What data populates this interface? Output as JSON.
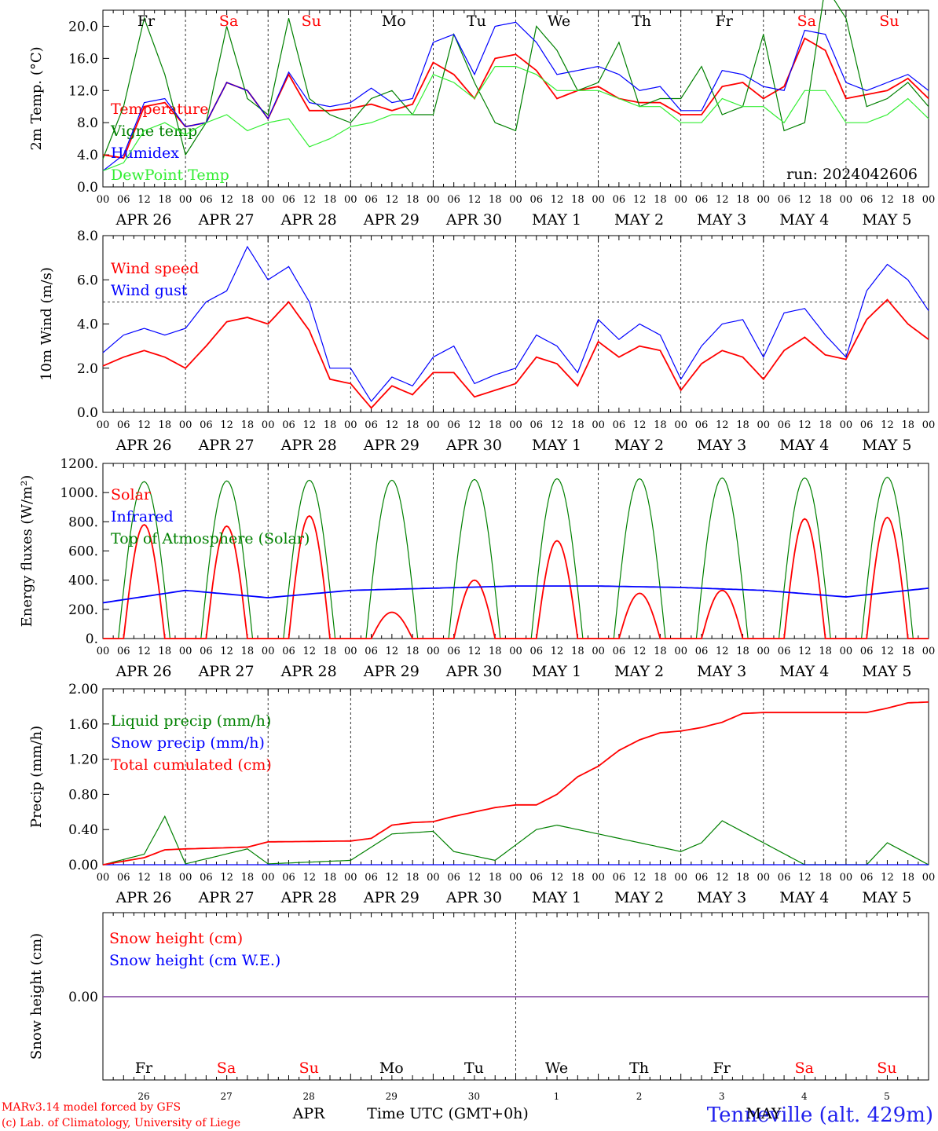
{
  "colors": {
    "red": "#ff0000",
    "green": "#008000",
    "blue": "#0000ff",
    "lightgreen": "#33ee33",
    "purple": "#7f3f9f",
    "black": "#000000"
  },
  "weekdays": [
    {
      "label": "Fr",
      "color": "#000000"
    },
    {
      "label": "Sa",
      "color": "#ff0000"
    },
    {
      "label": "Su",
      "color": "#ff0000"
    },
    {
      "label": "Mo",
      "color": "#000000"
    },
    {
      "label": "Tu",
      "color": "#000000"
    },
    {
      "label": "We",
      "color": "#000000"
    },
    {
      "label": "Th",
      "color": "#000000"
    },
    {
      "label": "Fr",
      "color": "#000000"
    },
    {
      "label": "Sa",
      "color": "#ff0000"
    },
    {
      "label": "Su",
      "color": "#ff0000"
    }
  ],
  "date_labels": [
    "APR 26",
    "APR 27",
    "APR 28",
    "APR 29",
    "APR 30",
    "MAY  1",
    "MAY  2",
    "MAY  3",
    "MAY  4",
    "MAY  5"
  ],
  "hour_labels": [
    "00",
    "06",
    "12",
    "18"
  ],
  "day_numbers": [
    "26",
    "27",
    "28",
    "29",
    "30",
    "1",
    "2",
    "3",
    "4",
    "5"
  ],
  "footer": {
    "month_apr": "APR",
    "month_may": "MAY",
    "time_axis": "Time UTC (GMT+0h)",
    "credit1": "MARv3.14 model forced by GFS",
    "credit2": "(c) Lab. of Climatology, University of Liege",
    "station": "Tenneville (alt. 429m)"
  },
  "chart_data": [
    {
      "type": "line",
      "ylabel": "2m Temp. (°C)",
      "ylim": [
        0,
        22
      ],
      "yticks": [
        "0.0",
        "4.0",
        "8.0",
        "12.0",
        "16.0",
        "20.0"
      ],
      "annotation": "run: 2024042606",
      "x_unit": "hours since APR 26 00 UTC",
      "series": [
        {
          "name": "Temperature",
          "color": "#ff0000",
          "x": [
            0,
            6,
            12,
            18,
            24,
            30,
            36,
            42,
            48,
            54,
            60,
            66,
            72,
            78,
            84,
            90,
            96,
            102,
            108,
            114,
            120,
            126,
            132,
            138,
            144,
            150,
            156,
            162,
            168,
            174,
            180,
            186,
            192,
            198,
            204,
            210,
            216,
            222,
            228,
            234,
            240
          ],
          "values": [
            4,
            3.6,
            10,
            10.5,
            7.5,
            8,
            13,
            12,
            8.5,
            14,
            9.5,
            9.5,
            9.8,
            10.3,
            9.5,
            10.3,
            15.5,
            14,
            11,
            16,
            16.5,
            14.5,
            11,
            12,
            12.5,
            11,
            10.5,
            10.5,
            9,
            9,
            12.5,
            13,
            11,
            12.5,
            18.5,
            17,
            11,
            11.5,
            12,
            13.5,
            11
          ]
        },
        {
          "name": "Vigne temp",
          "color": "#008000",
          "x": [
            0,
            6,
            12,
            18,
            24,
            30,
            36,
            42,
            48,
            54,
            60,
            66,
            72,
            78,
            84,
            90,
            96,
            102,
            108,
            114,
            120,
            126,
            132,
            138,
            144,
            150,
            156,
            162,
            168,
            174,
            180,
            186,
            192,
            198,
            204,
            210,
            216,
            222,
            228,
            234,
            240
          ],
          "values": [
            3.5,
            10,
            21,
            14,
            4,
            8,
            20,
            11,
            9,
            21,
            11,
            9,
            8,
            11,
            12,
            9,
            9,
            19,
            13,
            8,
            7,
            20,
            17,
            12,
            13,
            18,
            10,
            11,
            11,
            15,
            9,
            10,
            19,
            7,
            8,
            25,
            21,
            10,
            11,
            13,
            10
          ]
        },
        {
          "name": "Humidex",
          "color": "#0000ff",
          "x": [
            0,
            6,
            12,
            18,
            24,
            30,
            36,
            42,
            48,
            54,
            60,
            66,
            72,
            78,
            84,
            90,
            96,
            102,
            108,
            114,
            120,
            126,
            132,
            138,
            144,
            150,
            156,
            162,
            168,
            174,
            180,
            186,
            192,
            198,
            204,
            210,
            216,
            222,
            228,
            234,
            240
          ],
          "values": [
            2,
            4,
            10.5,
            11,
            7.5,
            8,
            13,
            12,
            8.5,
            14.3,
            10.5,
            10,
            10.5,
            12.3,
            10.5,
            11,
            18,
            19,
            14,
            20,
            20.5,
            18,
            14,
            14.5,
            15,
            14,
            12,
            12.5,
            9.5,
            9.5,
            14.5,
            14,
            12.5,
            12,
            19.5,
            19,
            13,
            12,
            13,
            14,
            12
          ]
        },
        {
          "name": "DewPoint Temp",
          "color": "#33ee33",
          "x": [
            0,
            6,
            12,
            18,
            24,
            30,
            36,
            42,
            48,
            54,
            60,
            66,
            72,
            78,
            84,
            90,
            96,
            102,
            108,
            114,
            120,
            126,
            132,
            138,
            144,
            150,
            156,
            162,
            168,
            174,
            180,
            186,
            192,
            198,
            204,
            210,
            216,
            222,
            228,
            234,
            240
          ],
          "values": [
            2,
            3,
            7,
            8,
            6.5,
            8,
            9,
            7,
            8,
            8.5,
            5,
            6,
            7.5,
            8,
            9,
            9,
            14,
            13,
            11,
            15,
            15,
            14,
            12,
            12,
            12,
            11,
            10,
            10,
            8,
            8,
            11,
            10,
            10,
            8,
            12,
            12,
            8,
            8,
            9,
            11,
            8.5
          ]
        }
      ]
    },
    {
      "type": "line",
      "ylabel": "10m Wind (m/s)",
      "ylim": [
        0,
        8
      ],
      "yticks": [
        "0.0",
        "2.0",
        "4.0",
        "6.0",
        "8.0"
      ],
      "reference_line": 5,
      "series": [
        {
          "name": "Wind speed",
          "color": "#ff0000",
          "x": [
            0,
            6,
            12,
            18,
            24,
            30,
            36,
            42,
            48,
            54,
            60,
            66,
            72,
            78,
            84,
            90,
            96,
            102,
            108,
            114,
            120,
            126,
            132,
            138,
            144,
            150,
            156,
            162,
            168,
            174,
            180,
            186,
            192,
            198,
            204,
            210,
            216,
            222,
            228,
            234,
            240
          ],
          "values": [
            2.1,
            2.5,
            2.8,
            2.5,
            2,
            3,
            4.1,
            4.3,
            4,
            5,
            3.7,
            1.5,
            1.3,
            0.2,
            1.2,
            0.8,
            1.8,
            1.8,
            0.7,
            1,
            1.3,
            2.5,
            2.2,
            1.2,
            3.2,
            2.5,
            3,
            2.8,
            1,
            2.2,
            2.8,
            2.5,
            1.5,
            2.8,
            3.4,
            2.6,
            2.4,
            4.2,
            5.1,
            4,
            3.3
          ]
        },
        {
          "name": "Wind gust",
          "color": "#0000ff",
          "x": [
            0,
            6,
            12,
            18,
            24,
            30,
            36,
            42,
            48,
            54,
            60,
            66,
            72,
            78,
            84,
            90,
            96,
            102,
            108,
            114,
            120,
            126,
            132,
            138,
            144,
            150,
            156,
            162,
            168,
            174,
            180,
            186,
            192,
            198,
            204,
            210,
            216,
            222,
            228,
            234,
            240
          ],
          "values": [
            2.7,
            3.5,
            3.8,
            3.5,
            3.8,
            5,
            5.5,
            7.5,
            6,
            6.6,
            5,
            2,
            2,
            0.5,
            1.6,
            1.2,
            2.5,
            3,
            1.3,
            1.7,
            2,
            3.5,
            3,
            1.8,
            4.2,
            3.3,
            4,
            3.5,
            1.5,
            3,
            4,
            4.2,
            2.5,
            4.5,
            4.7,
            3.5,
            2.5,
            5.5,
            6.7,
            6,
            4.6
          ]
        }
      ]
    },
    {
      "type": "line",
      "ylabel": "Energy fluxes (W/m²)",
      "ylim": [
        0,
        1200
      ],
      "yticks": [
        "0.",
        "200.",
        "400.",
        "600.",
        "800.",
        "1000.",
        "1200."
      ],
      "series": [
        {
          "name": "Solar",
          "color": "#ff0000",
          "peaks": [
            780,
            770,
            840,
            180,
            400,
            670,
            310,
            330,
            820,
            830
          ]
        },
        {
          "name": "Infrared",
          "color": "#0000ff",
          "x": [
            0,
            24,
            48,
            72,
            96,
            120,
            144,
            168,
            192,
            216,
            240
          ],
          "values": [
            245,
            330,
            280,
            330,
            345,
            360,
            360,
            350,
            330,
            285,
            345
          ]
        },
        {
          "name": "Top of Atmosphere (Solar)",
          "color": "#008000",
          "peaks": [
            1075,
            1080,
            1085,
            1085,
            1090,
            1095,
            1095,
            1100,
            1100,
            1105
          ]
        }
      ]
    },
    {
      "type": "line",
      "ylabel": "Precip (mm/h)",
      "ylim": [
        0,
        2
      ],
      "yticks": [
        "0.00",
        "0.40",
        "0.80",
        "1.20",
        "1.60",
        "2.00"
      ],
      "series": [
        {
          "name": "Liquid precip (mm/h)",
          "color": "#008000",
          "x": [
            0,
            12,
            18,
            24,
            42,
            48,
            72,
            84,
            96,
            102,
            114,
            126,
            132,
            144,
            156,
            168,
            174,
            180,
            204,
            216,
            222,
            228,
            240
          ],
          "values": [
            0,
            0.12,
            0.55,
            0.01,
            0.18,
            0.01,
            0.05,
            0.35,
            0.38,
            0.15,
            0.05,
            0.4,
            0.45,
            0.35,
            0.25,
            0.15,
            0.25,
            0.5,
            0,
            0,
            0,
            0.25,
            0
          ]
        },
        {
          "name": "Snow precip (mm/h)",
          "color": "#0000ff",
          "x": [
            0,
            240
          ],
          "values": [
            0,
            0
          ]
        },
        {
          "name": "Total cumulated (cm)",
          "color": "#ff0000",
          "x": [
            0,
            12,
            18,
            24,
            42,
            48,
            72,
            78,
            84,
            90,
            96,
            102,
            108,
            114,
            120,
            126,
            132,
            138,
            144,
            150,
            156,
            162,
            168,
            174,
            180,
            186,
            192,
            204,
            210,
            216,
            222,
            228,
            234,
            240
          ],
          "values": [
            0,
            0.08,
            0.17,
            0.18,
            0.2,
            0.26,
            0.27,
            0.3,
            0.45,
            0.48,
            0.49,
            0.55,
            0.6,
            0.65,
            0.68,
            0.68,
            0.8,
            1.0,
            1.12,
            1.3,
            1.42,
            1.5,
            1.52,
            1.56,
            1.62,
            1.72,
            1.73,
            1.73,
            1.73,
            1.73,
            1.73,
            1.78,
            1.84,
            1.85
          ]
        }
      ]
    },
    {
      "type": "line",
      "ylabel": "Snow height (cm)",
      "yticks": [
        "0.00"
      ],
      "series": [
        {
          "name": "Snow height (cm)",
          "color": "#ff0000",
          "x": [
            0,
            240
          ],
          "values": [
            0,
            0
          ]
        },
        {
          "name": "Snow height (cm W.E.)",
          "color": "#0000ff",
          "x": [
            0,
            240
          ],
          "values": [
            0,
            0
          ]
        }
      ]
    }
  ]
}
